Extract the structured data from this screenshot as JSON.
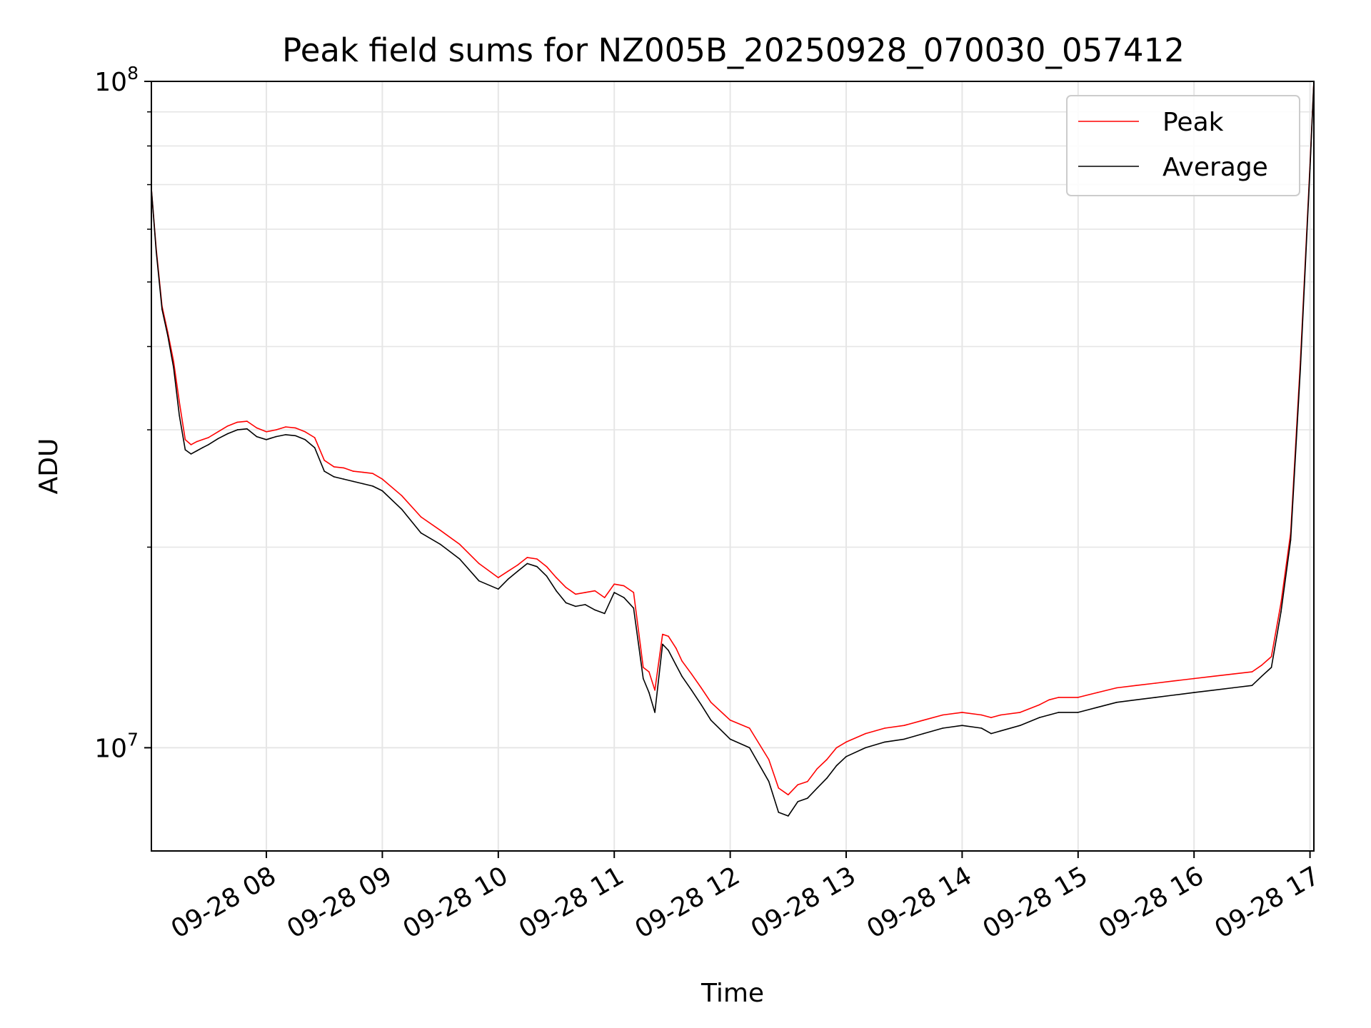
{
  "chart_data": {
    "type": "line",
    "title": "Peak field sums for NZ005B_20250928_070030_057412",
    "xlabel": "Time",
    "ylabel": "ADU",
    "y_scale": "log",
    "ylim": [
      7000000,
      100000000
    ],
    "xlim": [
      "2025-09-28 07:00:30",
      "2025-09-28 17:02:00"
    ],
    "x_ticks": [
      {
        "label": "09-28 08",
        "value": "2025-09-28 08:00"
      },
      {
        "label": "09-28 09",
        "value": "2025-09-28 09:00"
      },
      {
        "label": "09-28 10",
        "value": "2025-09-28 10:00"
      },
      {
        "label": "09-28 11",
        "value": "2025-09-28 11:00"
      },
      {
        "label": "09-28 12",
        "value": "2025-09-28 12:00"
      },
      {
        "label": "09-28 13",
        "value": "2025-09-28 13:00"
      },
      {
        "label": "09-28 14",
        "value": "2025-09-28 14:00"
      },
      {
        "label": "09-28 15",
        "value": "2025-09-28 15:00"
      },
      {
        "label": "09-28 16",
        "value": "2025-09-28 16:00"
      },
      {
        "label": "09-28 17",
        "value": "2025-09-28 17:00"
      }
    ],
    "y_ticks": [
      {
        "base": "10",
        "exp": "7",
        "value": 10000000
      },
      {
        "base": "10",
        "exp": "8",
        "value": 100000000
      }
    ],
    "grid": true,
    "legend_position": "top-right",
    "x": [
      "2025-09-28 07:00:30",
      "2025-09-28 07:03",
      "2025-09-28 07:06",
      "2025-09-28 07:09",
      "2025-09-28 07:12",
      "2025-09-28 07:15",
      "2025-09-28 07:18",
      "2025-09-28 07:21",
      "2025-09-28 07:24",
      "2025-09-28 07:27",
      "2025-09-28 07:30",
      "2025-09-28 07:35",
      "2025-09-28 07:40",
      "2025-09-28 07:45",
      "2025-09-28 07:50",
      "2025-09-28 07:55",
      "2025-09-28 08:00",
      "2025-09-28 08:05",
      "2025-09-28 08:10",
      "2025-09-28 08:15",
      "2025-09-28 08:20",
      "2025-09-28 08:25",
      "2025-09-28 08:30",
      "2025-09-28 08:35",
      "2025-09-28 08:40",
      "2025-09-28 08:45",
      "2025-09-28 08:50",
      "2025-09-28 08:55",
      "2025-09-28 09:00",
      "2025-09-28 09:10",
      "2025-09-28 09:20",
      "2025-09-28 09:30",
      "2025-09-28 09:40",
      "2025-09-28 09:50",
      "2025-09-28 10:00",
      "2025-09-28 10:05",
      "2025-09-28 10:10",
      "2025-09-28 10:15",
      "2025-09-28 10:20",
      "2025-09-28 10:25",
      "2025-09-28 10:30",
      "2025-09-28 10:35",
      "2025-09-28 10:40",
      "2025-09-28 10:45",
      "2025-09-28 10:50",
      "2025-09-28 10:55",
      "2025-09-28 11:00",
      "2025-09-28 11:05",
      "2025-09-28 11:10",
      "2025-09-28 11:15",
      "2025-09-28 11:18",
      "2025-09-28 11:21",
      "2025-09-28 11:25",
      "2025-09-28 11:28",
      "2025-09-28 11:32",
      "2025-09-28 11:35",
      "2025-09-28 11:40",
      "2025-09-28 11:45",
      "2025-09-28 11:50",
      "2025-09-28 12:00",
      "2025-09-28 12:10",
      "2025-09-28 12:20",
      "2025-09-28 12:25",
      "2025-09-28 12:30",
      "2025-09-28 12:35",
      "2025-09-28 12:40",
      "2025-09-28 12:45",
      "2025-09-28 12:50",
      "2025-09-28 12:55",
      "2025-09-28 13:00",
      "2025-09-28 13:10",
      "2025-09-28 13:20",
      "2025-09-28 13:30",
      "2025-09-28 13:40",
      "2025-09-28 13:50",
      "2025-09-28 14:00",
      "2025-09-28 14:10",
      "2025-09-28 14:15",
      "2025-09-28 14:20",
      "2025-09-28 14:30",
      "2025-09-28 14:40",
      "2025-09-28 14:45",
      "2025-09-28 14:50",
      "2025-09-28 15:00",
      "2025-09-28 15:10",
      "2025-09-28 15:20",
      "2025-09-28 15:30",
      "2025-09-28 15:40",
      "2025-09-28 15:50",
      "2025-09-28 16:00",
      "2025-09-28 16:10",
      "2025-09-28 16:20",
      "2025-09-28 16:30",
      "2025-09-28 16:35",
      "2025-09-28 16:40",
      "2025-09-28 16:45",
      "2025-09-28 16:50",
      "2025-09-28 16:55",
      "2025-09-28 17:00",
      "2025-09-28 17:02"
    ],
    "series": [
      {
        "name": "Peak",
        "color": "#ff0000",
        "values": [
          69000000,
          56000000,
          46000000,
          42000000,
          38000000,
          33000000,
          29000000,
          28500000,
          28800000,
          29000000,
          29200000,
          29800000,
          30400000,
          30800000,
          30900000,
          30200000,
          29800000,
          30000000,
          30300000,
          30200000,
          29800000,
          29200000,
          27000000,
          26400000,
          26300000,
          26000000,
          25900000,
          25800000,
          25300000,
          23900000,
          22200000,
          21200000,
          20200000,
          18900000,
          18000000,
          18400000,
          18800000,
          19300000,
          19200000,
          18700000,
          18000000,
          17400000,
          17000000,
          17100000,
          17200000,
          16800000,
          17600000,
          17500000,
          17100000,
          13200000,
          13000000,
          12200000,
          14800000,
          14700000,
          14100000,
          13500000,
          12900000,
          12300000,
          11700000,
          11000000,
          10700000,
          9600000,
          8700000,
          8500000,
          8800000,
          8900000,
          9300000,
          9600000,
          10000000,
          10200000,
          10500000,
          10700000,
          10800000,
          11000000,
          11200000,
          11300000,
          11200000,
          11100000,
          11200000,
          11300000,
          11600000,
          11800000,
          11900000,
          11900000,
          12100000,
          12300000,
          12400000,
          12500000,
          12600000,
          12700000,
          12800000,
          12900000,
          13000000,
          13300000,
          13700000,
          16500000,
          21000000,
          38000000,
          75000000,
          100000000
        ]
      },
      {
        "name": "Average",
        "color": "#000000",
        "values": [
          69000000,
          55500000,
          45500000,
          41500000,
          37200000,
          31500000,
          28000000,
          27600000,
          27900000,
          28200000,
          28500000,
          29100000,
          29600000,
          30000000,
          30100000,
          29300000,
          29000000,
          29300000,
          29500000,
          29400000,
          29000000,
          28200000,
          26000000,
          25500000,
          25300000,
          25100000,
          24900000,
          24700000,
          24300000,
          22800000,
          21000000,
          20200000,
          19200000,
          17800000,
          17300000,
          17900000,
          18400000,
          18900000,
          18700000,
          18100000,
          17200000,
          16500000,
          16300000,
          16400000,
          16100000,
          15900000,
          17100000,
          16800000,
          16200000,
          12700000,
          12100000,
          11300000,
          14300000,
          14000000,
          13300000,
          12800000,
          12200000,
          11600000,
          11000000,
          10300000,
          10000000,
          8900000,
          8000000,
          7900000,
          8300000,
          8400000,
          8700000,
          9000000,
          9400000,
          9700000,
          10000000,
          10200000,
          10300000,
          10500000,
          10700000,
          10800000,
          10700000,
          10500000,
          10600000,
          10800000,
          11100000,
          11200000,
          11300000,
          11300000,
          11500000,
          11700000,
          11800000,
          11900000,
          12000000,
          12100000,
          12200000,
          12300000,
          12400000,
          12800000,
          13200000,
          16000000,
          20500000,
          37000000,
          74000000,
          100000000
        ]
      }
    ]
  }
}
